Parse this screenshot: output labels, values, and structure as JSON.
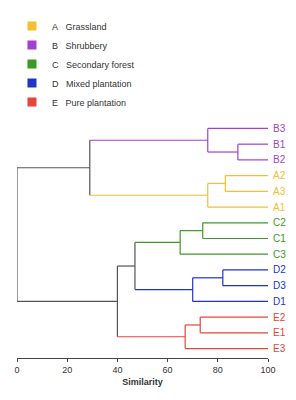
{
  "chart_data": {
    "type": "dendrogram",
    "xlabel": "Similarity",
    "xlim": [
      0,
      100
    ],
    "xticks": [
      0,
      20,
      40,
      60,
      80,
      100
    ],
    "groups": [
      {
        "id": "A",
        "name": "Grassland",
        "color": "#f2c12e"
      },
      {
        "id": "B",
        "name": "Shrubbery",
        "color": "#a23fd0"
      },
      {
        "id": "C",
        "name": "Secondary forest",
        "color": "#3c9a22"
      },
      {
        "id": "D",
        "name": "Mixed plantation",
        "color": "#2233cc"
      },
      {
        "id": "E",
        "name": "Pure plantation",
        "color": "#e6453c"
      }
    ],
    "tree": {
      "similarity": 0,
      "children": [
        {
          "similarity": 29,
          "children": [
            {
              "similarity": 76,
              "children": [
                {
                  "label": "B3",
                  "group": "B"
                },
                {
                  "similarity": 88,
                  "children": [
                    {
                      "label": "B1",
                      "group": "B"
                    },
                    {
                      "label": "B2",
                      "group": "B"
                    }
                  ]
                }
              ]
            },
            {
              "similarity": 76,
              "children": [
                {
                  "similarity": 83,
                  "children": [
                    {
                      "label": "A2",
                      "group": "A"
                    },
                    {
                      "label": "A3",
                      "group": "A"
                    }
                  ]
                },
                {
                  "label": "A1",
                  "group": "A"
                }
              ]
            }
          ]
        },
        {
          "similarity": 40,
          "children": [
            {
              "similarity": 47,
              "children": [
                {
                  "similarity": 65,
                  "children": [
                    {
                      "similarity": 74,
                      "children": [
                        {
                          "label": "C2",
                          "group": "C"
                        },
                        {
                          "label": "C1",
                          "group": "C"
                        }
                      ]
                    },
                    {
                      "label": "C3",
                      "group": "C"
                    }
                  ]
                },
                {
                  "similarity": 70,
                  "children": [
                    {
                      "similarity": 82,
                      "children": [
                        {
                          "label": "D2",
                          "group": "D"
                        },
                        {
                          "label": "D3",
                          "group": "D"
                        }
                      ]
                    },
                    {
                      "label": "D1",
                      "group": "D"
                    }
                  ]
                }
              ]
            },
            {
              "similarity": 67,
              "children": [
                {
                  "similarity": 73,
                  "children": [
                    {
                      "label": "E2",
                      "group": "E"
                    },
                    {
                      "label": "E1",
                      "group": "E"
                    }
                  ]
                },
                {
                  "label": "E3",
                  "group": "E"
                }
              ]
            }
          ]
        }
      ]
    }
  }
}
